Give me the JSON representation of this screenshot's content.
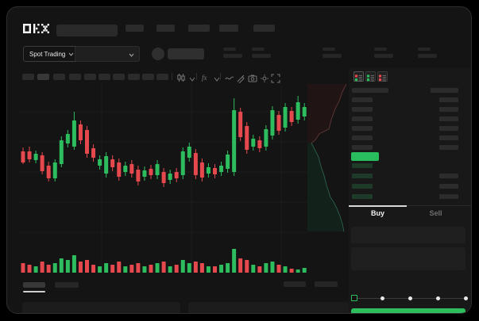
{
  "app": {
    "brand": "OKX"
  },
  "market_selector": {
    "label": "Spot Trading"
  },
  "toolbar": {
    "interval_buttons": 10,
    "icons": [
      "candles-icon",
      "indicators-icon",
      "line-style-icon",
      "draw-icon",
      "camera-icon",
      "settings-icon",
      "fullscreen-icon"
    ]
  },
  "order_book": {
    "view_icons": [
      "book-combined",
      "book-bids",
      "book-asks"
    ],
    "asks_rows": 6,
    "bids_rows": 4
  },
  "trade_panel": {
    "buy_tab": "Buy",
    "sell_tab": "Sell",
    "amount_slider_steps": 5
  },
  "colors": {
    "up": "#2ebd5e",
    "down": "#e5484d",
    "bid_row": "#1d3b28",
    "mid_price": "#2abd5e",
    "depth_ask_fill": "#211414",
    "depth_ask_line": "#6b3b3b",
    "depth_bid_fill": "#12211a",
    "depth_bid_line": "#2e6b52",
    "grid": "#1d1d1d"
  },
  "chart_data": {
    "type": "candlestick",
    "candles": [
      [
        53,
        39,
        58,
        37
      ],
      [
        53,
        43,
        59,
        39
      ],
      [
        42,
        50,
        54,
        38
      ],
      [
        48,
        28,
        52,
        24
      ],
      [
        35,
        19,
        40,
        15
      ],
      [
        19,
        39,
        43,
        15
      ],
      [
        37,
        67,
        72,
        33
      ],
      [
        63,
        75,
        80,
        58
      ],
      [
        59,
        92,
        103,
        55
      ],
      [
        87,
        67,
        92,
        62
      ],
      [
        80,
        50,
        85,
        45
      ],
      [
        57,
        45,
        62,
        40
      ],
      [
        35,
        43,
        48,
        30
      ],
      [
        25,
        47,
        52,
        20
      ],
      [
        43,
        33,
        48,
        28
      ],
      [
        39,
        21,
        44,
        16
      ],
      [
        27,
        35,
        40,
        22
      ],
      [
        37,
        25,
        42,
        20
      ],
      [
        30,
        15,
        35,
        10
      ],
      [
        21,
        29,
        34,
        16
      ],
      [
        31,
        23,
        36,
        18
      ],
      [
        23,
        37,
        42,
        18
      ],
      [
        27,
        13,
        32,
        8
      ],
      [
        17,
        25,
        30,
        12
      ],
      [
        27,
        19,
        32,
        14
      ],
      [
        23,
        53,
        58,
        18
      ],
      [
        45,
        59,
        64,
        40
      ],
      [
        51,
        23,
        56,
        18
      ],
      [
        39,
        20,
        44,
        15
      ],
      [
        25,
        33,
        38,
        20
      ],
      [
        32,
        24,
        37,
        19
      ],
      [
        27,
        35,
        40,
        22
      ],
      [
        31,
        49,
        54,
        26
      ],
      [
        27,
        105,
        120,
        22
      ],
      [
        103,
        71,
        108,
        66
      ],
      [
        85,
        55,
        90,
        50
      ],
      [
        59,
        69,
        74,
        54
      ],
      [
        67,
        57,
        72,
        52
      ],
      [
        59,
        81,
        86,
        54
      ],
      [
        73,
        105,
        110,
        68
      ],
      [
        99,
        79,
        104,
        74
      ],
      [
        83,
        109,
        114,
        78
      ],
      [
        104,
        90,
        109,
        85
      ],
      [
        93,
        115,
        123,
        88
      ],
      [
        97,
        109,
        114,
        92
      ]
    ],
    "volumes": [
      12,
      10,
      8,
      14,
      10,
      12,
      18,
      16,
      22,
      14,
      16,
      10,
      8,
      12,
      10,
      14,
      8,
      10,
      12,
      8,
      10,
      12,
      14,
      8,
      10,
      16,
      12,
      14,
      12,
      8,
      8,
      10,
      12,
      30,
      18,
      16,
      10,
      8,
      12,
      14,
      10,
      8,
      5,
      4,
      6
    ],
    "depth": {
      "asks_curve": [
        [
          0.98,
          0.01
        ],
        [
          0.88,
          0.06
        ],
        [
          0.8,
          0.12
        ],
        [
          0.7,
          0.17
        ],
        [
          0.6,
          0.24
        ],
        [
          0.54,
          0.3
        ],
        [
          0.3,
          0.33
        ],
        [
          0.2,
          0.37
        ],
        [
          0.1,
          0.39
        ]
      ],
      "bids_curve": [
        [
          0.1,
          0.39
        ],
        [
          0.2,
          0.44
        ],
        [
          0.28,
          0.48
        ],
        [
          0.34,
          0.54
        ],
        [
          0.42,
          0.6
        ],
        [
          0.48,
          0.66
        ],
        [
          0.58,
          0.74
        ],
        [
          0.66,
          0.77
        ],
        [
          0.74,
          0.81
        ],
        [
          0.82,
          0.86
        ],
        [
          0.88,
          0.91
        ],
        [
          0.92,
          0.96
        ]
      ]
    }
  }
}
